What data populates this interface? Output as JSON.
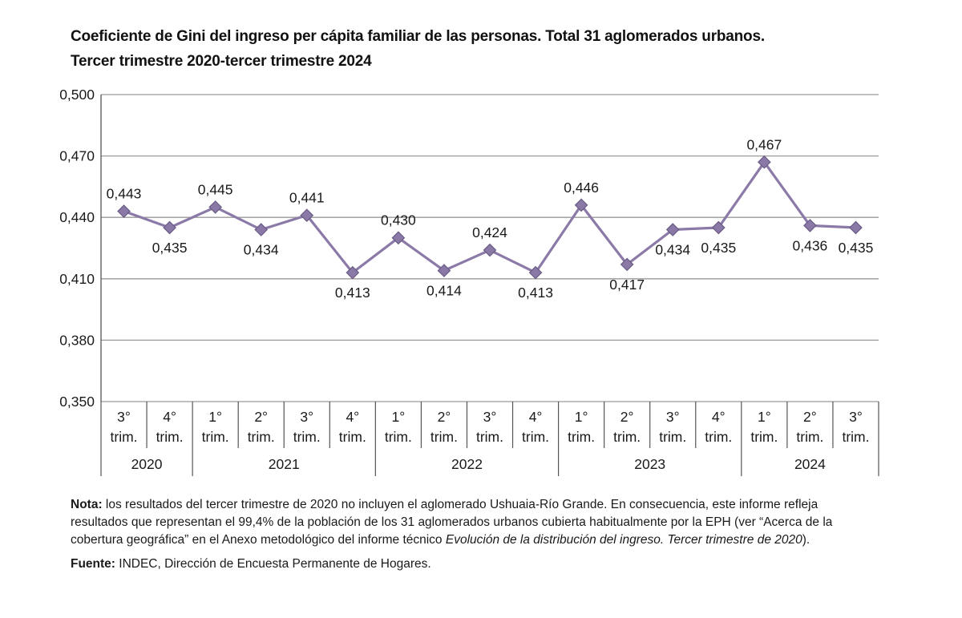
{
  "title": {
    "line1": "Coeficiente de Gini del ingreso per cápita familiar de las personas. Total 31 aglomerados urbanos.",
    "line2": "Tercer trimestre 2020-tercer trimestre 2024"
  },
  "colors": {
    "line": "#8b7aa8",
    "marker_fill": "#8a79a6",
    "marker_stroke": "#6a5c85",
    "grid": "#9a9a9a",
    "axis": "#555555"
  },
  "chart_data": {
    "type": "line",
    "title": "Coeficiente de Gini del ingreso per cápita familiar de las personas. Total 31 aglomerados urbanos. Tercer trimestre 2020-tercer trimestre 2024",
    "ylim": [
      0.35,
      0.5
    ],
    "yticks": [
      "0,350",
      "0,380",
      "0,410",
      "0,440",
      "0,470",
      "0,500"
    ],
    "grid": true,
    "categories": [
      [
        "3°",
        "trim."
      ],
      [
        "4°",
        "trim."
      ],
      [
        "1°",
        "trim."
      ],
      [
        "2°",
        "trim."
      ],
      [
        "3°",
        "trim."
      ],
      [
        "4°",
        "trim."
      ],
      [
        "1°",
        "trim."
      ],
      [
        "2°",
        "trim."
      ],
      [
        "3°",
        "trim."
      ],
      [
        "4°",
        "trim."
      ],
      [
        "1°",
        "trim."
      ],
      [
        "2°",
        "trim."
      ],
      [
        "3°",
        "trim."
      ],
      [
        "4°",
        "trim."
      ],
      [
        "1°",
        "trim."
      ],
      [
        "2°",
        "trim."
      ],
      [
        "3°",
        "trim."
      ]
    ],
    "years": [
      {
        "label": "2020",
        "count": 2
      },
      {
        "label": "2021",
        "count": 4
      },
      {
        "label": "2022",
        "count": 4
      },
      {
        "label": "2023",
        "count": 4
      },
      {
        "label": "2024",
        "count": 3
      }
    ],
    "values": [
      0.443,
      0.435,
      0.445,
      0.434,
      0.441,
      0.413,
      0.43,
      0.414,
      0.424,
      0.413,
      0.446,
      0.417,
      0.434,
      0.435,
      0.467,
      0.436,
      0.435
    ],
    "data_labels": [
      "0,443",
      "0,435",
      "0,445",
      "0,434",
      "0,441",
      "0,413",
      "0,430",
      "0,414",
      "0,424",
      "0,413",
      "0,446",
      "0,417",
      "0,434",
      "0,435",
      "0,467",
      "0,436",
      "0,435"
    ],
    "label_positions": [
      "above",
      "below",
      "above",
      "below",
      "above",
      "below",
      "above",
      "below",
      "above",
      "below",
      "above",
      "below",
      "below",
      "below",
      "above",
      "below",
      "below"
    ]
  },
  "notes": {
    "nota_label": "Nota:",
    "nota_text_1": " los resultados del tercer trimestre de 2020 no incluyen el aglomerado Ushuaia-Río Grande. En consecuencia, este informe refleja resultados que representan el 99,4% de la población de los 31 aglomerados urbanos cubierta habitualmente por la EPH (ver “Acerca de la cobertura geográfica” en el Anexo metodológico del informe técnico ",
    "nota_italic": "Evolución de la distribución del ingreso. Tercer trimestre de 2020",
    "nota_text_2": ").",
    "fuente_label": "Fuente:",
    "fuente_text": " INDEC, Dirección de Encuesta Permanente de Hogares."
  }
}
